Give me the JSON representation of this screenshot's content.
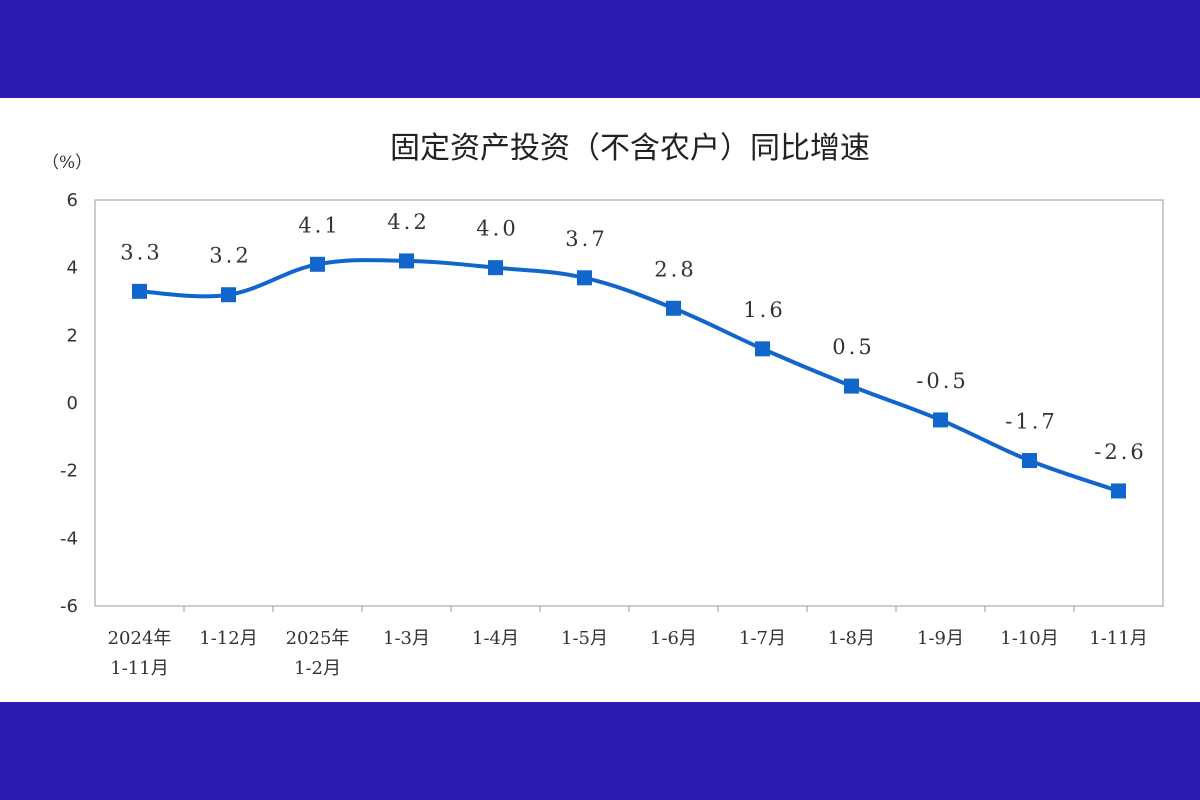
{
  "colors": {
    "frame": "#2c1bb1",
    "series": "#1166cc",
    "background": "#ffffff",
    "axis": "#999999"
  },
  "chart_data": {
    "type": "line",
    "title": "固定资产投资（不含农户）同比增速",
    "ylabel": "（%）",
    "xlabel": "",
    "ylim": [
      -6,
      6
    ],
    "yticks": [
      6,
      4,
      2,
      0,
      -2,
      -4,
      -6
    ],
    "grid": false,
    "legend": "none",
    "categories": [
      [
        "2024年",
        "1-11月"
      ],
      [
        "1-12月"
      ],
      [
        "2025年",
        "1-2月"
      ],
      [
        "1-3月"
      ],
      [
        "1-4月"
      ],
      [
        "1-5月"
      ],
      [
        "1-6月"
      ],
      [
        "1-7月"
      ],
      [
        "1-8月"
      ],
      [
        "1-9月"
      ],
      [
        "1-10月"
      ],
      [
        "1-11月"
      ]
    ],
    "series": [
      {
        "values": [
          3.3,
          3.2,
          4.1,
          4.2,
          4.0,
          3.7,
          2.8,
          1.6,
          0.5,
          -0.5,
          -1.7,
          -2.6
        ],
        "labels": [
          "3.3",
          "3.2",
          "4.1",
          "4.2",
          "4.0",
          "3.7",
          "2.8",
          "1.6",
          "0.5",
          "-0.5",
          "-1.7",
          "-2.6"
        ]
      }
    ]
  }
}
